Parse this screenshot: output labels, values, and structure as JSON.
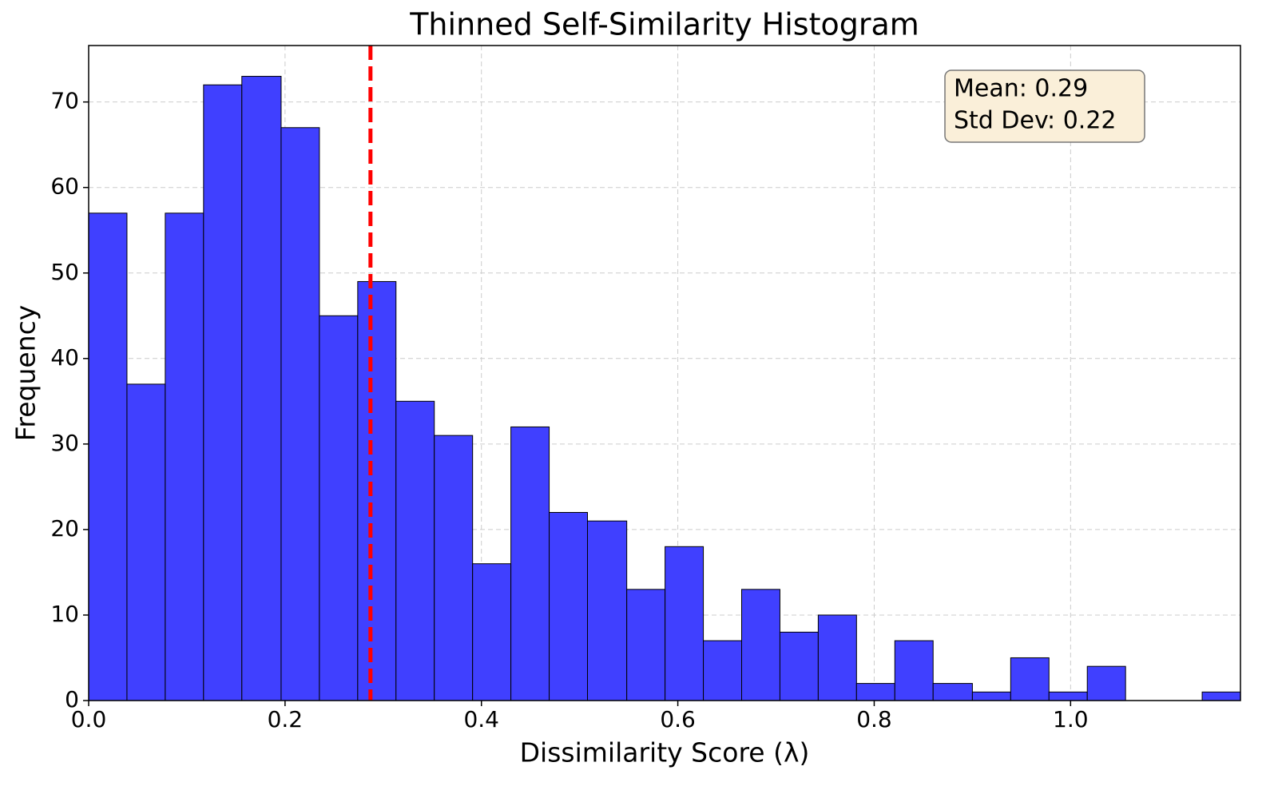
{
  "chart_data": {
    "type": "histogram",
    "title": "Thinned Self-Similarity Histogram",
    "x_label": "Dissimilarity Score (λ)",
    "y_label": "Frequency",
    "bins": [
      0,
      0.039,
      0.078,
      0.117,
      0.156,
      0.196,
      0.235,
      0.274,
      0.313,
      0.352,
      0.391,
      0.43,
      0.469,
      0.508,
      0.548,
      0.587,
      0.626,
      0.665,
      0.704,
      0.743,
      0.782,
      0.821,
      0.86,
      0.9,
      0.939,
      0.978,
      1.017,
      1.056,
      1.095,
      1.134,
      1.173
    ],
    "counts": [
      57,
      37,
      57,
      72,
      73,
      67,
      45,
      49,
      35,
      31,
      16,
      32,
      22,
      21,
      13,
      18,
      7,
      13,
      8,
      10,
      2,
      7,
      2,
      1,
      5,
      1,
      4,
      0,
      0,
      1
    ],
    "color": "#4040ff",
    "mean_line": {
      "value": 0.287,
      "color": "#ff0000"
    },
    "annotations": [
      "Mean: 0.29",
      "Std Dev: 0.22"
    ],
    "xlim": [
      0,
      1.173
    ],
    "ylim": [
      0,
      76.6
    ],
    "xticks": [
      {
        "value": 0,
        "label": "0.0"
      },
      0.2,
      0.4,
      0.6,
      0.8,
      {
        "value": 1,
        "label": "1.0"
      }
    ],
    "yticks": [
      0,
      10,
      20,
      30,
      40,
      50,
      60,
      70
    ],
    "grid": true
  }
}
